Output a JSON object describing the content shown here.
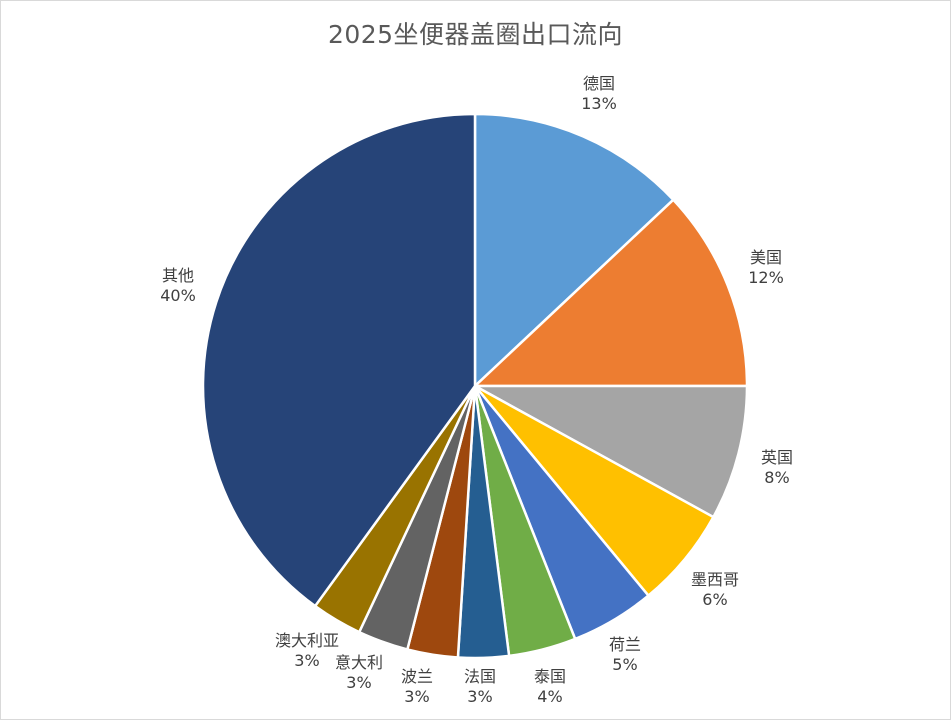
{
  "chart_data": {
    "type": "pie",
    "title": "2025坐便器盖圈出口流向",
    "slices": [
      {
        "name": "德国",
        "value": 13,
        "label": "13%",
        "color": "#5B9BD5"
      },
      {
        "name": "美国",
        "value": 12,
        "label": "12%",
        "color": "#ED7D31"
      },
      {
        "name": "英国",
        "value": 8,
        "label": "8%",
        "color": "#A5A5A5"
      },
      {
        "name": "墨西哥",
        "value": 6,
        "label": "6%",
        "color": "#FFC000"
      },
      {
        "name": "荷兰",
        "value": 5,
        "label": "5%",
        "color": "#4472C4"
      },
      {
        "name": "泰国",
        "value": 4,
        "label": "4%",
        "color": "#70AD47"
      },
      {
        "name": "法国",
        "value": 3,
        "label": "3%",
        "color": "#255E91"
      },
      {
        "name": "波兰",
        "value": 3,
        "label": "3%",
        "color": "#9E480E"
      },
      {
        "name": "意大利",
        "value": 3,
        "label": "3%",
        "color": "#636363"
      },
      {
        "name": "澳大利亚",
        "value": 3,
        "label": "3%",
        "color": "#997300"
      },
      {
        "name": "其他",
        "value": 40,
        "label": "40%",
        "color": "#264478"
      }
    ],
    "legend": "none",
    "data_labels": "outside-end"
  }
}
